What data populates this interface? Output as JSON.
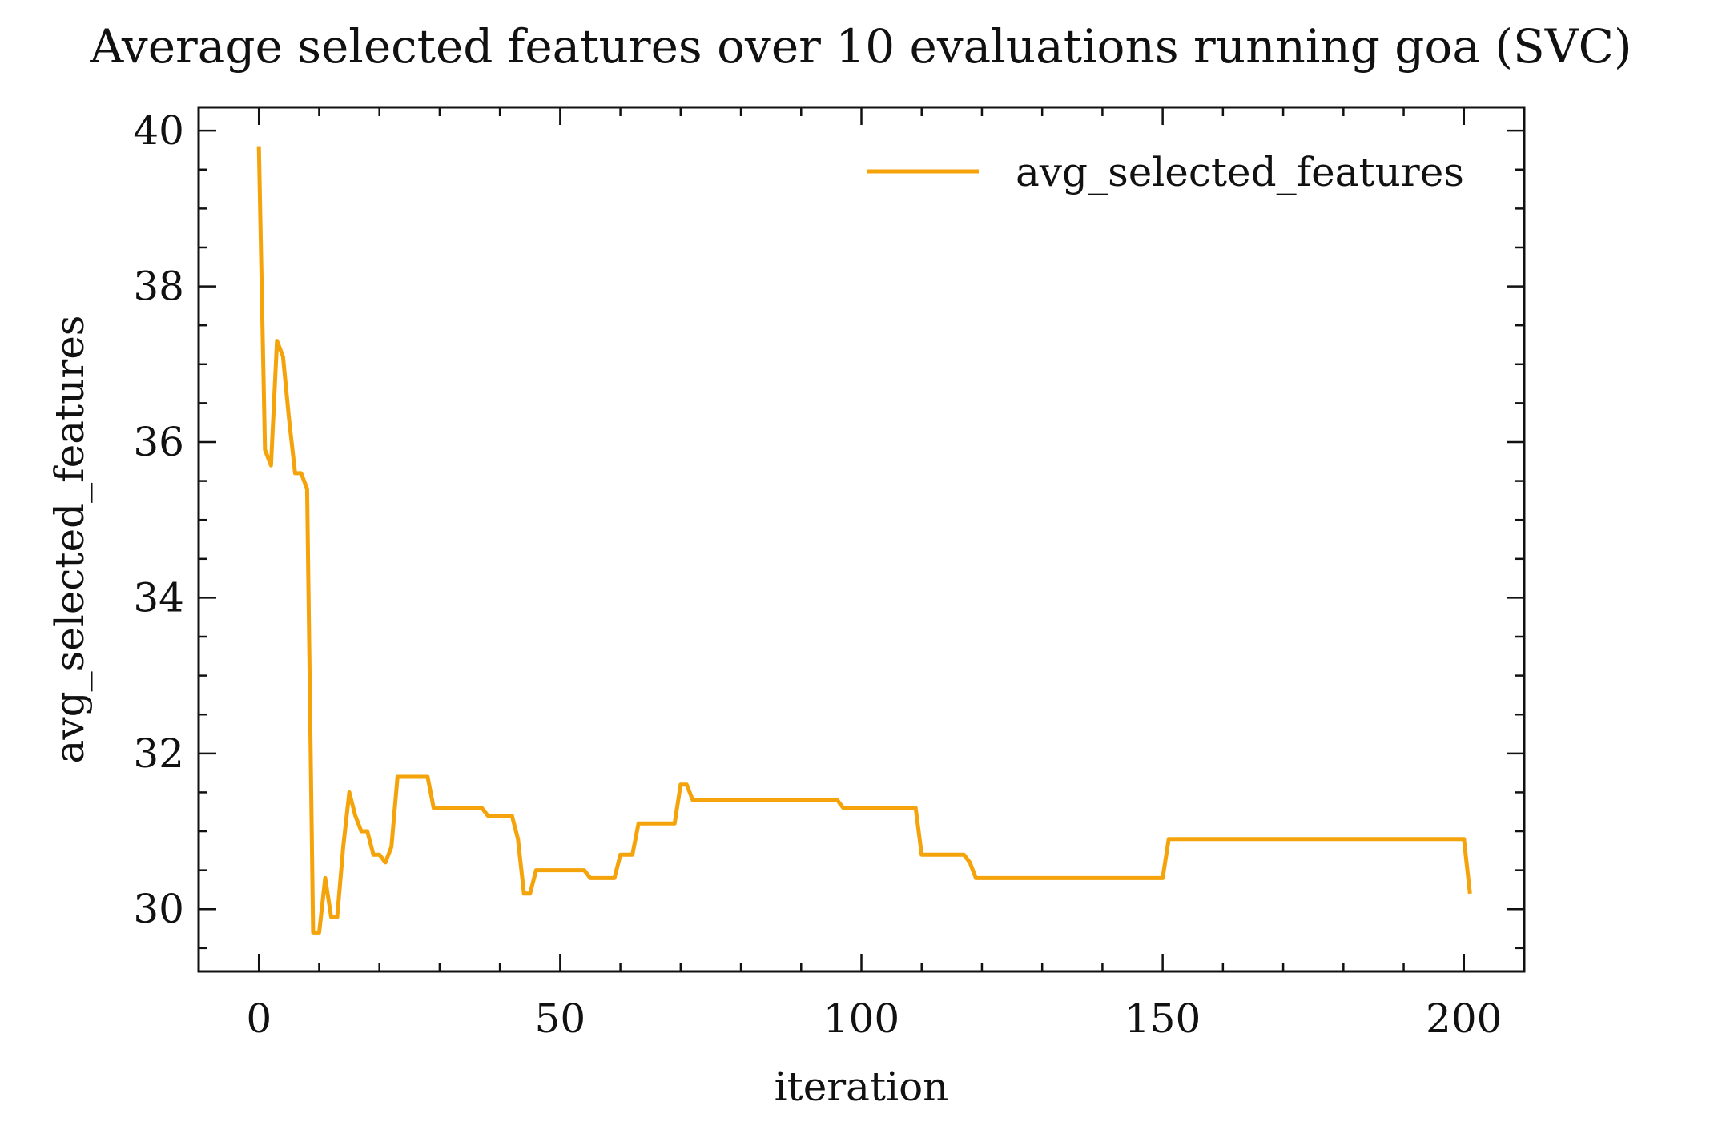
{
  "chart_data": {
    "type": "line",
    "title": "Average selected features over 10 evaluations running goa (SVC)",
    "xlabel": "iteration",
    "ylabel": "avg_selected_features",
    "xlim": [
      -10,
      210
    ],
    "ylim": [
      29.2,
      40.3
    ],
    "xticks": [
      0,
      50,
      100,
      150,
      200
    ],
    "yticks": [
      30,
      32,
      34,
      36,
      38,
      40
    ],
    "xminor_step": 10,
    "yminor_step": 0.5,
    "grid": false,
    "legend_position": "top-right",
    "series": [
      {
        "name": "avg_selected_features",
        "color": "#F5A30A",
        "points": [
          [
            0,
            39.8
          ],
          [
            1,
            35.9
          ],
          [
            2,
            35.7
          ],
          [
            3,
            37.3
          ],
          [
            4,
            37.1
          ],
          [
            5,
            36.3
          ],
          [
            6,
            35.6
          ],
          [
            7,
            35.6
          ],
          [
            8,
            35.4
          ],
          [
            9,
            29.7
          ],
          [
            10,
            29.7
          ],
          [
            11,
            30.4
          ],
          [
            12,
            29.9
          ],
          [
            13,
            29.9
          ],
          [
            14,
            30.8
          ],
          [
            15,
            31.5
          ],
          [
            16,
            31.2
          ],
          [
            17,
            31.0
          ],
          [
            18,
            31.0
          ],
          [
            19,
            30.7
          ],
          [
            20,
            30.7
          ],
          [
            21,
            30.6
          ],
          [
            22,
            30.8
          ],
          [
            23,
            31.7
          ],
          [
            28,
            31.7
          ],
          [
            29,
            31.3
          ],
          [
            37,
            31.3
          ],
          [
            38,
            31.2
          ],
          [
            42,
            31.2
          ],
          [
            43,
            30.9
          ],
          [
            44,
            30.2
          ],
          [
            45,
            30.2
          ],
          [
            46,
            30.5
          ],
          [
            54,
            30.5
          ],
          [
            55,
            30.4
          ],
          [
            59,
            30.4
          ],
          [
            60,
            30.7
          ],
          [
            62,
            30.7
          ],
          [
            63,
            31.1
          ],
          [
            69,
            31.1
          ],
          [
            70,
            31.6
          ],
          [
            71,
            31.6
          ],
          [
            72,
            31.4
          ],
          [
            96,
            31.4
          ],
          [
            97,
            31.3
          ],
          [
            109,
            31.3
          ],
          [
            110,
            30.7
          ],
          [
            117,
            30.7
          ],
          [
            118,
            30.6
          ],
          [
            119,
            30.4
          ],
          [
            150,
            30.4
          ],
          [
            151,
            30.9
          ],
          [
            200,
            30.9
          ],
          [
            201,
            30.2
          ]
        ]
      }
    ]
  }
}
